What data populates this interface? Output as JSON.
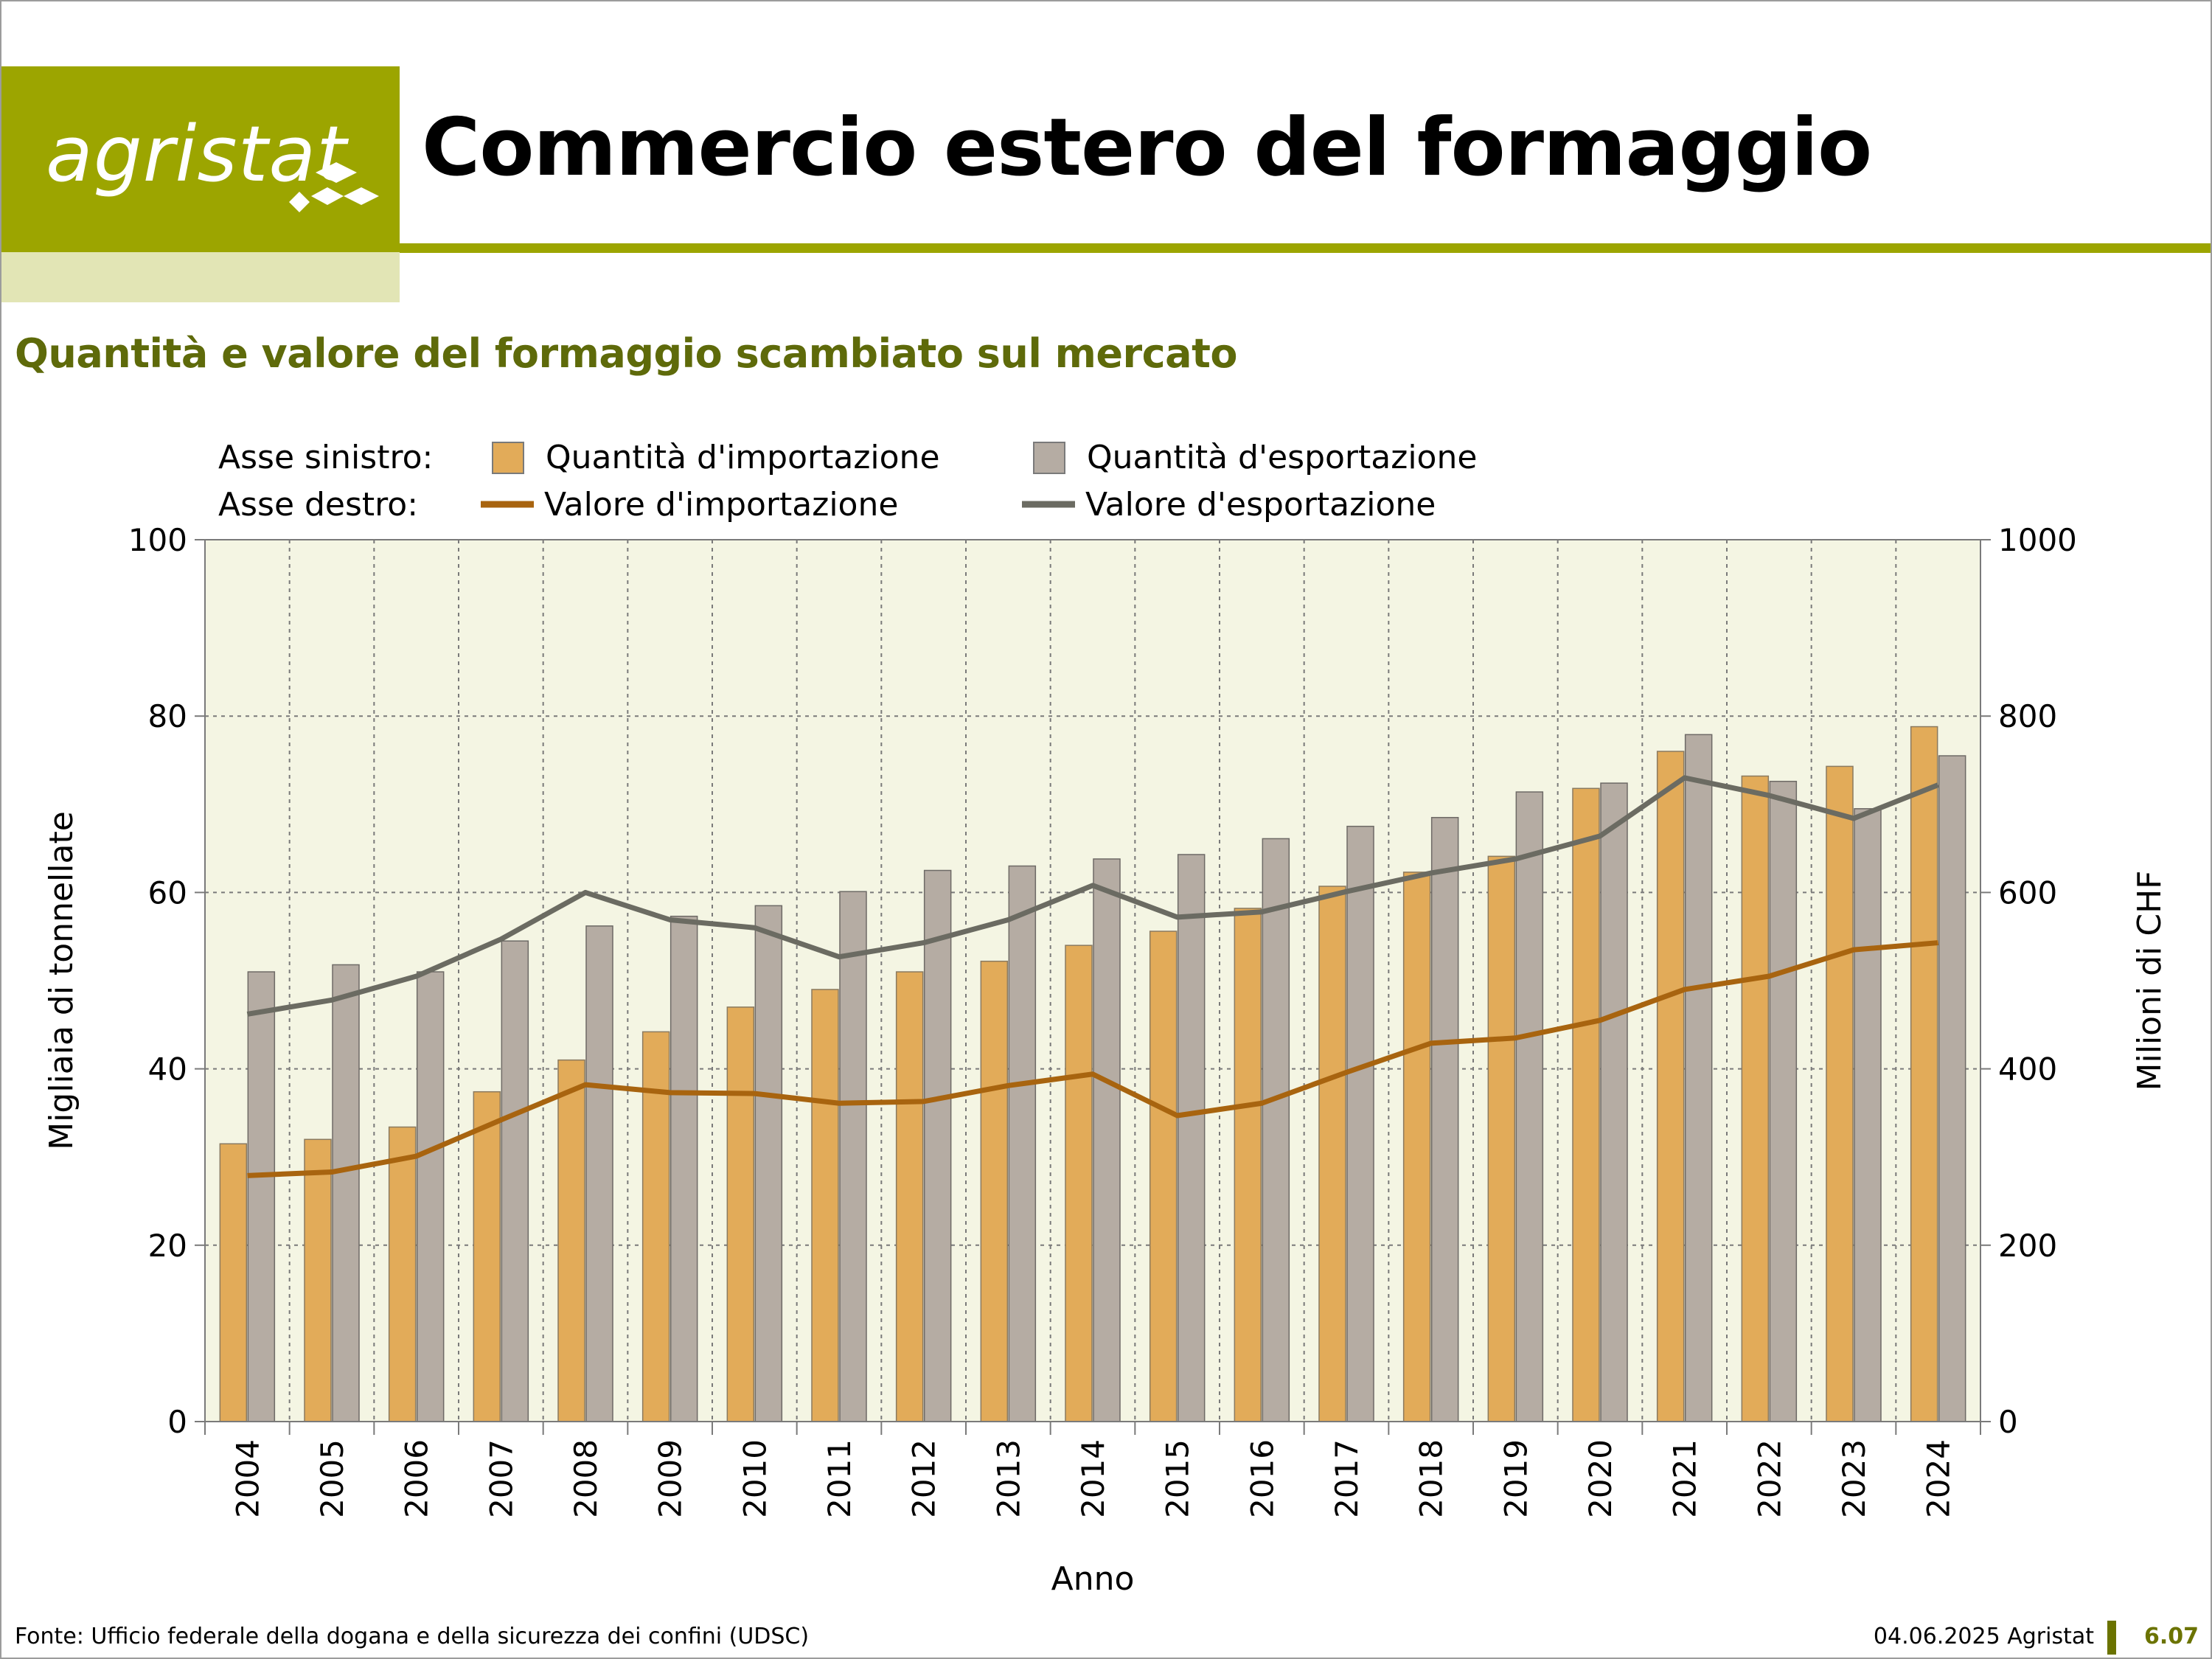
{
  "header": {
    "logo_text": "agristat",
    "title": "Commercio estero del formaggio"
  },
  "subtitle": "Quantità e valore del formaggio scambiato sul mercato",
  "legend": {
    "left_axis_label": "Asse sinistro:",
    "right_axis_label": "Asse destro:"
  },
  "colors": {
    "brand": "#9ca500",
    "brand_pale": "#e2e5b5",
    "subtitle": "#5e6a0a",
    "plot_bg": "#f4f5e3",
    "import_bar": "#e2ab59",
    "export_bar": "#b5aca3",
    "import_line": "#a8640f",
    "export_line": "#6b6b62"
  },
  "chart_data": {
    "type": "bar",
    "categories": [
      "2004",
      "2005",
      "2006",
      "2007",
      "2008",
      "2009",
      "2010",
      "2011",
      "2012",
      "2013",
      "2014",
      "2015",
      "2016",
      "2017",
      "2018",
      "2019",
      "2020",
      "2021",
      "2022",
      "2023",
      "2024"
    ],
    "xlabel": "Anno",
    "ylabel": "Migliaia di tonnellate",
    "y2label": "Milioni di CHF",
    "ylim": [
      0,
      100
    ],
    "y2lim": [
      0,
      1000
    ],
    "yticks": [
      0,
      20,
      40,
      60,
      80,
      100
    ],
    "y2ticks": [
      0,
      200,
      400,
      600,
      800,
      1000
    ],
    "grid": true,
    "series": [
      {
        "name": "Quantità d'importazione",
        "axis": "left",
        "type": "bar",
        "color": "#e2ab59",
        "values": [
          31.5,
          32,
          33.4,
          37.4,
          41,
          44.2,
          47,
          49,
          51,
          52.2,
          54,
          55.6,
          58.2,
          60.7,
          62.3,
          64.1,
          71.8,
          76,
          73.2,
          74.3,
          78.8
        ]
      },
      {
        "name": "Quantità d'esportazione",
        "axis": "left",
        "type": "bar",
        "color": "#b5aca3",
        "values": [
          51,
          51.8,
          51,
          54.5,
          56.2,
          57.3,
          58.5,
          60.1,
          62.5,
          63,
          63.8,
          64.3,
          66.1,
          67.5,
          68.5,
          71.4,
          72.4,
          77.9,
          72.6,
          69.5,
          75.5
        ]
      },
      {
        "name": "Valore d'importazione",
        "axis": "right",
        "type": "line",
        "color": "#a8640f",
        "values": [
          279,
          283,
          301,
          342,
          382,
          373,
          372,
          361,
          363,
          381,
          394,
          347,
          361,
          396,
          429,
          435,
          455,
          490,
          505,
          535,
          543
        ]
      },
      {
        "name": "Valore d'esportazione",
        "axis": "right",
        "type": "line",
        "color": "#6b6b62",
        "values": [
          462,
          478,
          505,
          547,
          600,
          569,
          560,
          527,
          543,
          569,
          608,
          572,
          578,
          601,
          622,
          638,
          664,
          730,
          710,
          684,
          722
        ]
      }
    ]
  },
  "footer": {
    "source": "Fonte: Ufficio federale della dogana e della sicurezza dei confini (UDSC)",
    "date": "04.06.2025 Agristat",
    "page": "6.07"
  }
}
